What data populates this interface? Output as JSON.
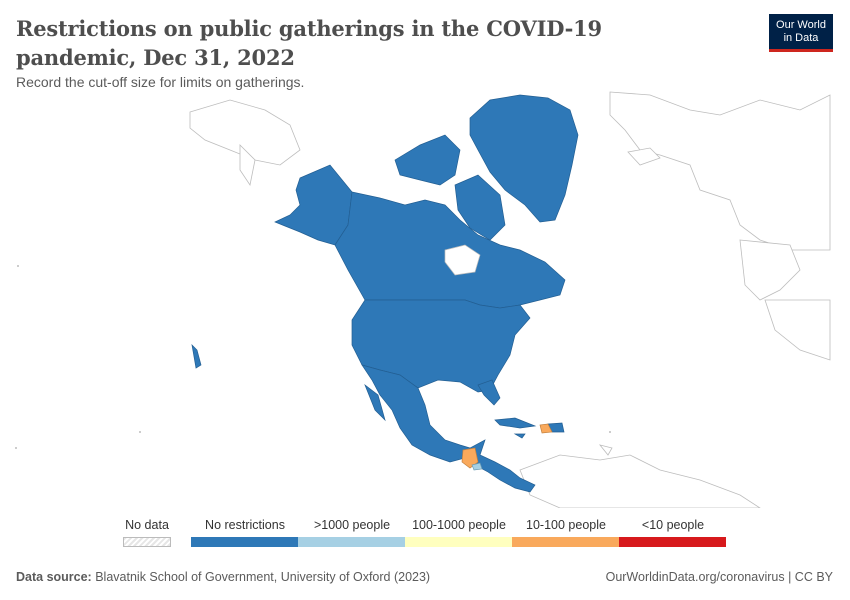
{
  "header": {
    "title": "Restrictions on public gatherings in the COVID-19 pandemic, Dec 31, 2022",
    "subtitle": "Record the cut-off size for limits on gatherings.",
    "logo_line1": "Our World",
    "logo_line2": "in Data"
  },
  "legend": {
    "no_data_label": "No data",
    "categories": [
      {
        "label": "No restrictions",
        "color": "#2e78b7"
      },
      {
        "label": ">1000 people",
        "color": "#a6d0e4"
      },
      {
        "label": "100-1000 people",
        "color": "#ffffbf"
      },
      {
        "label": "10-100 people",
        "color": "#f9a95c"
      },
      {
        "label": "<10 people",
        "color": "#d7191c"
      }
    ]
  },
  "map": {
    "highlighted_color": "#2e78b7",
    "countries": [
      {
        "name": "Canada",
        "category": "No restrictions"
      },
      {
        "name": "United States",
        "category": "No restrictions"
      },
      {
        "name": "Mexico",
        "category": "No restrictions"
      },
      {
        "name": "Greenland",
        "category": "No restrictions"
      },
      {
        "name": "Cuba",
        "category": "No restrictions"
      },
      {
        "name": "Guatemala",
        "category": "10-100 people"
      },
      {
        "name": "Haiti",
        "category": "10-100 people"
      },
      {
        "name": "Dominican Republic",
        "category": "No restrictions"
      },
      {
        "name": "Honduras",
        "category": "No restrictions"
      },
      {
        "name": "El Salvador",
        "category": ">1000 people"
      },
      {
        "name": "Nicaragua",
        "category": "No restrictions"
      },
      {
        "name": "Costa Rica",
        "category": "No restrictions"
      },
      {
        "name": "Panama",
        "category": "No restrictions"
      },
      {
        "name": "Belize",
        "category": "No restrictions"
      },
      {
        "name": "Jamaica",
        "category": "No restrictions"
      },
      {
        "name": "Puerto Rico",
        "category": "No restrictions"
      }
    ]
  },
  "footer": {
    "source_label": "Data source:",
    "source_text": "Blavatnik School of Government, University of Oxford (2023)",
    "url_text": "OurWorldinData.org/coronavirus | CC BY"
  }
}
